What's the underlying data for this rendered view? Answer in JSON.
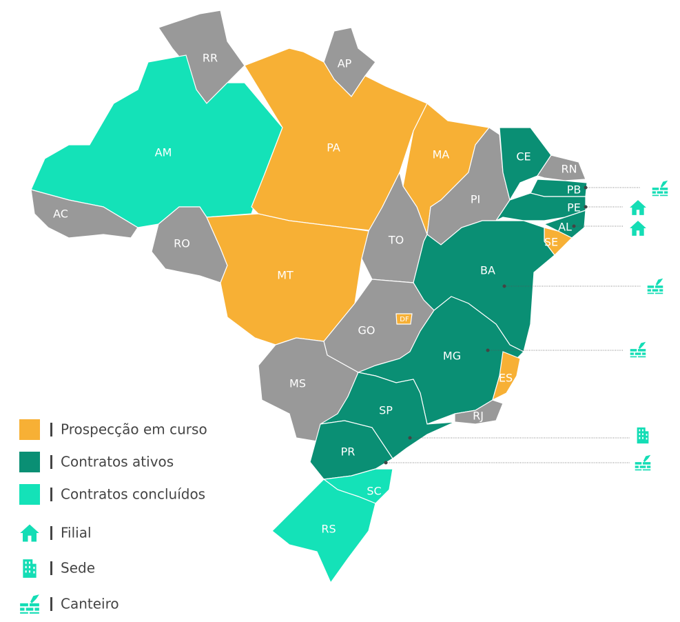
{
  "states": [
    "RR",
    "AP",
    "AM",
    "AC",
    "RO",
    "PA",
    "MA",
    "TO",
    "MT",
    "PI",
    "CE",
    "RN",
    "PB",
    "PE",
    "AL",
    "SE",
    "BA",
    "GO",
    "DF",
    "MS",
    "MG",
    "ES",
    "RJ",
    "SP",
    "PR",
    "SC",
    "RS"
  ],
  "legend": [
    "Prospecção em curso",
    "Contratos ativos",
    "Contratos concluídos",
    "Filial",
    "Sede",
    "Canteiro"
  ]
}
